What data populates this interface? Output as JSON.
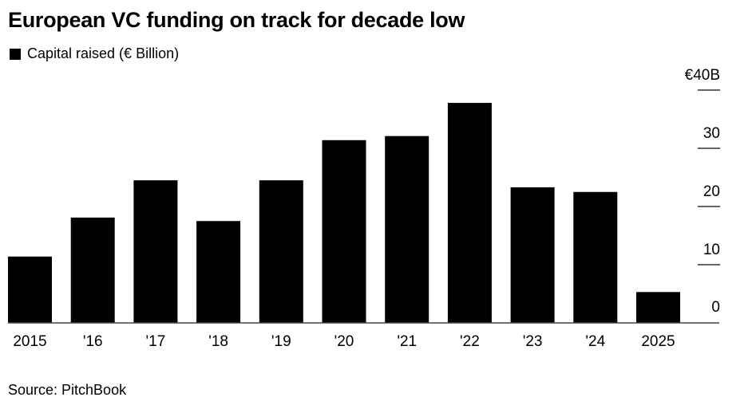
{
  "title": "European VC funding on track for decade low",
  "source": "Source: PitchBook",
  "chart_data": {
    "type": "bar",
    "title": "European VC funding on track for decade low",
    "legend": {
      "label": "Capital raised (€ Billion)",
      "placement": "top-left"
    },
    "categories": [
      "2015",
      "'16",
      "'17",
      "'18",
      "'19",
      "'20",
      "'21",
      "'22",
      "'23",
      "'24",
      "2025"
    ],
    "series": [
      {
        "name": "Capital raised (€ Billion)",
        "values": [
          11.4,
          18.1,
          24.5,
          17.5,
          24.5,
          31.4,
          32.1,
          37.8,
          23.3,
          22.5,
          5.3
        ],
        "color": "#000000"
      }
    ],
    "ylim": [
      0,
      40
    ],
    "yticks": [
      0,
      10,
      20,
      30,
      40
    ],
    "ytick_labels": [
      "0",
      "10",
      "20",
      "30",
      "€40B"
    ],
    "y_axis_position": "right",
    "grid": false
  }
}
